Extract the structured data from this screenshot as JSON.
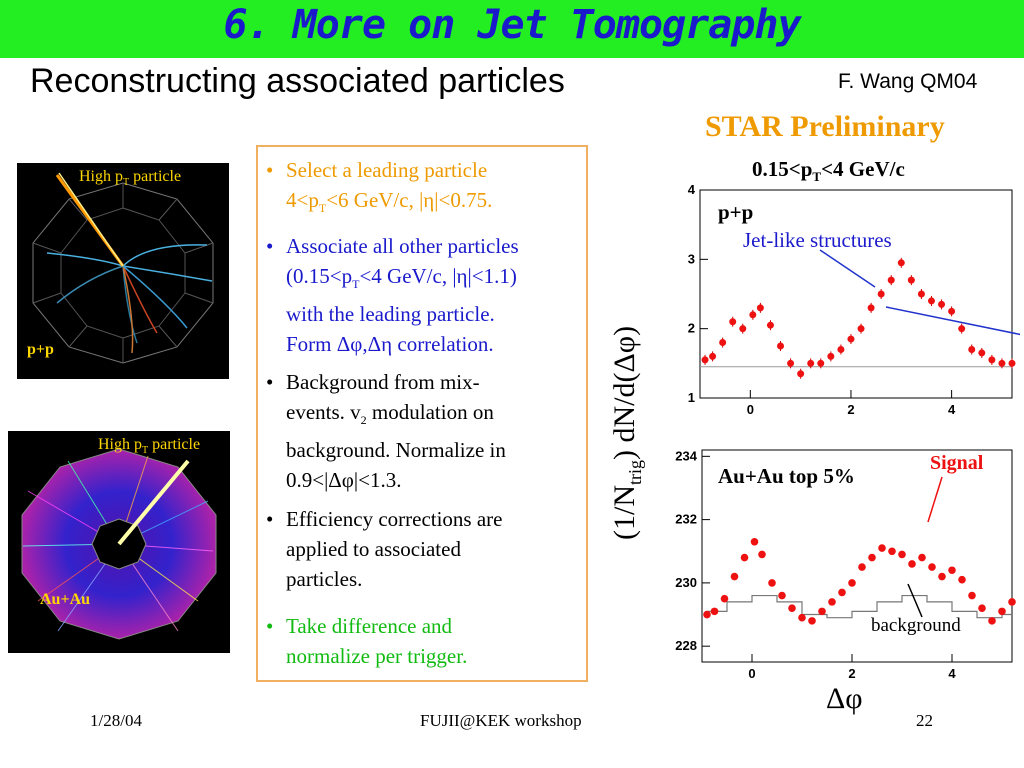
{
  "slide": {
    "title": "6. More on Jet Tomography",
    "subtitle": "Reconstructing associated particles",
    "author": "F. Wang QM04",
    "star": "STAR Preliminary"
  },
  "left_images": {
    "top": {
      "arrow_label_main": "High p",
      "arrow_label_sub": "T",
      "arrow_label_end": " particle",
      "system": "p+p"
    },
    "bottom": {
      "arrow_label_main": "High p",
      "arrow_label_sub": "T",
      "arrow_label_end": " particle",
      "system": "Au+Au"
    }
  },
  "bullets": [
    {
      "line1": "Select a leading particle",
      "line2_a": "4<p",
      "line2_sub": "T",
      "line2_b": "<6 GeV/c, |η|<0.75.",
      "color": "#ee9a00"
    },
    {
      "line1": "Associate all other particles",
      "line2_a": "(0.15<p",
      "line2_sub": "T",
      "line2_b": "<4 GeV/c, |η|<1.1)",
      "line3": "with the leading particle.",
      "line4": "Form Δφ,Δη correlation.",
      "color": "#1a1acc"
    },
    {
      "line1": "Background from mix-",
      "line2": "events. v",
      "line2_sub": "2",
      "line2_b": " modulation on",
      "line3": "background. Normalize in",
      "line4": "0.9<|Δφ|<1.3.",
      "color": "#000000"
    },
    {
      "line1": "Efficiency corrections are",
      "line2": "applied to associated",
      "line3": "particles.",
      "color": "#000000"
    },
    {
      "line1": "Take difference and",
      "line2": "normalize per trigger.",
      "color": "#11bb11"
    }
  ],
  "plots": {
    "title_a": "0.15<p",
    "title_sub": "T",
    "title_b": "<4 GeV/c",
    "ylabel_a": "(1/N",
    "ylabel_sub": "trig",
    "ylabel_b": ") dN/d(Δφ)",
    "xlabel": "Δφ",
    "pp_label": "p+p",
    "pp_annotation": "Jet-like structures",
    "auau_label": "Au+Au top 5%",
    "signal_label": "Signal",
    "background_label": "background"
  },
  "chart_data": [
    {
      "type": "scatter",
      "title": "0.15<pT<4 GeV/c",
      "series": [
        {
          "name": "p+p",
          "x": [
            -0.9,
            -0.75,
            -0.55,
            -0.35,
            -0.15,
            0.05,
            0.2,
            0.4,
            0.6,
            0.8,
            1.0,
            1.2,
            1.4,
            1.6,
            1.8,
            2.0,
            2.2,
            2.4,
            2.6,
            2.8,
            3.0,
            3.2,
            3.4,
            3.6,
            3.8,
            4.0,
            4.2,
            4.4,
            4.6,
            4.8,
            5.0,
            5.2
          ],
          "y": [
            1.55,
            1.6,
            1.8,
            2.1,
            2.0,
            2.2,
            2.3,
            2.05,
            1.75,
            1.5,
            1.35,
            1.5,
            1.5,
            1.6,
            1.7,
            1.85,
            2.0,
            2.3,
            2.5,
            2.7,
            2.95,
            2.7,
            2.5,
            2.4,
            2.35,
            2.25,
            2.0,
            1.7,
            1.65,
            1.55,
            1.5,
            1.5
          ]
        }
      ],
      "xlim": [
        -1,
        5.2
      ],
      "ylim": [
        1,
        4
      ],
      "x_ticks": [
        0,
        2,
        4
      ],
      "y_ticks": [
        1,
        2,
        3,
        4
      ]
    },
    {
      "type": "scatter",
      "series": [
        {
          "name": "Signal",
          "x": [
            -0.9,
            -0.75,
            -0.55,
            -0.35,
            -0.15,
            0.05,
            0.2,
            0.4,
            0.6,
            0.8,
            1.0,
            1.2,
            1.4,
            1.6,
            1.8,
            2.0,
            2.2,
            2.4,
            2.6,
            2.8,
            3.0,
            3.2,
            3.4,
            3.6,
            3.8,
            4.0,
            4.2,
            4.4,
            4.6,
            4.8,
            5.0,
            5.2
          ],
          "y": [
            229.0,
            229.1,
            229.5,
            230.2,
            230.8,
            231.3,
            230.9,
            230.0,
            229.6,
            229.2,
            228.9,
            228.8,
            229.1,
            229.4,
            229.7,
            230.0,
            230.5,
            230.8,
            231.1,
            231.0,
            230.9,
            230.6,
            230.8,
            230.5,
            230.2,
            230.4,
            230.1,
            229.6,
            229.2,
            228.8,
            229.1,
            229.4
          ]
        },
        {
          "name": "background",
          "x": [
            -0.9,
            -0.5,
            0.0,
            0.5,
            1.0,
            1.5,
            2.0,
            2.5,
            3.0,
            3.5,
            4.0,
            4.5,
            5.0
          ],
          "y": [
            229.1,
            229.4,
            229.6,
            229.4,
            229.0,
            228.9,
            229.1,
            229.4,
            229.6,
            229.4,
            229.1,
            228.9,
            229.0
          ]
        }
      ],
      "xlim": [
        -1,
        5.2
      ],
      "ylim": [
        227.5,
        234.2
      ],
      "x_ticks": [
        0,
        2,
        4
      ],
      "y_ticks": [
        228,
        230,
        232,
        234
      ]
    }
  ],
  "footer": {
    "date": "1/28/04",
    "venue": "FUJII@KEK workshop",
    "page": "22"
  }
}
